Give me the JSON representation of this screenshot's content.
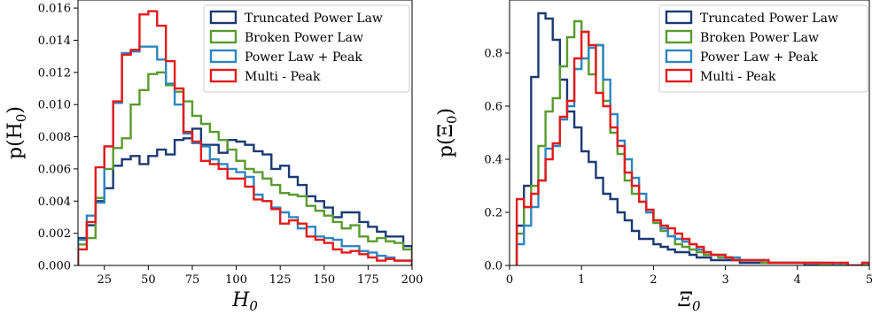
{
  "chart_data": [
    {
      "type": "histogram",
      "xlabel": "H",
      "xlabel_sub": "0",
      "ylabel": "p(H",
      "ylabel_sub": "0",
      "ylabel_close": ")",
      "xlim": [
        10,
        200
      ],
      "ylim": [
        0,
        0.0165
      ],
      "xticks": [
        25,
        50,
        75,
        100,
        125,
        150,
        175,
        200
      ],
      "yticks": [
        0.0,
        0.002,
        0.004,
        0.006,
        0.008,
        0.01,
        0.012,
        0.014,
        0.016
      ],
      "ytick_labels": [
        "0.000",
        "0.002",
        "0.004",
        "0.006",
        "0.008",
        "0.010",
        "0.012",
        "0.014",
        "0.016"
      ],
      "legend_position": "top-right",
      "bin_edges": [
        10,
        15,
        20,
        25,
        30,
        35,
        40,
        45,
        50,
        55,
        60,
        65,
        70,
        75,
        80,
        85,
        90,
        95,
        100,
        105,
        110,
        115,
        120,
        125,
        130,
        135,
        140,
        145,
        150,
        155,
        160,
        165,
        170,
        175,
        180,
        185,
        190,
        195,
        200
      ],
      "series": [
        {
          "name": "Truncated Power Law",
          "color": "#1b3a73",
          "values": [
            0.0017,
            0.0025,
            0.004,
            0.0048,
            0.0062,
            0.0066,
            0.0068,
            0.0063,
            0.0068,
            0.0072,
            0.0069,
            0.0078,
            0.0079,
            0.0085,
            0.0075,
            0.0075,
            0.007,
            0.0078,
            0.0077,
            0.0075,
            0.0071,
            0.0069,
            0.006,
            0.0062,
            0.0055,
            0.005,
            0.0043,
            0.004,
            0.0036,
            0.003,
            0.0033,
            0.0033,
            0.0027,
            0.0024,
            0.0021,
            0.0018,
            0.0018,
            0.0012
          ]
        },
        {
          "name": "Broken Power Law",
          "color": "#5a9b2e",
          "values": [
            0.0013,
            0.0017,
            0.0042,
            0.006,
            0.0073,
            0.0079,
            0.01,
            0.0109,
            0.0119,
            0.012,
            0.0112,
            0.0108,
            0.0102,
            0.0093,
            0.0088,
            0.0083,
            0.0078,
            0.0072,
            0.0065,
            0.006,
            0.0058,
            0.0054,
            0.005,
            0.0045,
            0.0044,
            0.0043,
            0.0037,
            0.0034,
            0.0031,
            0.0027,
            0.0023,
            0.0025,
            0.0018,
            0.0015,
            0.0017,
            0.0015,
            0.0014,
            0.001
          ]
        },
        {
          "name": "Power Law + Peak",
          "color": "#2e86c1",
          "values": [
            0.0016,
            0.0031,
            0.0039,
            0.0074,
            0.0101,
            0.0132,
            0.0133,
            0.0136,
            0.0136,
            0.0128,
            0.0113,
            0.01,
            0.0082,
            0.0076,
            0.0074,
            0.0066,
            0.0063,
            0.006,
            0.0058,
            0.0055,
            0.0044,
            0.004,
            0.0036,
            0.0033,
            0.003,
            0.0023,
            0.0024,
            0.0018,
            0.0017,
            0.0016,
            0.0012,
            0.0012,
            0.0009,
            0.0008,
            0.0006,
            0.0005,
            0.0003,
            0.0003
          ]
        },
        {
          "name": "Multi - Peak",
          "color": "#e41a1c",
          "values": [
            0.001,
            0.0027,
            0.0061,
            0.0074,
            0.0102,
            0.0131,
            0.0134,
            0.0156,
            0.0158,
            0.0149,
            0.0127,
            0.011,
            0.0083,
            0.0077,
            0.0065,
            0.0063,
            0.006,
            0.0054,
            0.0054,
            0.0049,
            0.0041,
            0.004,
            0.0035,
            0.0026,
            0.0028,
            0.0026,
            0.0018,
            0.0016,
            0.0014,
            0.001,
            0.0008,
            0.0009,
            0.0007,
            0.0005,
            0.0003,
            0.0004,
            0.0003,
            0.0003
          ]
        }
      ]
    },
    {
      "type": "histogram",
      "xlabel": "Ξ",
      "xlabel_sub": "0",
      "ylabel": "p(Ξ",
      "ylabel_sub": "0",
      "ylabel_close": ")",
      "xlim": [
        0,
        5
      ],
      "ylim": [
        0,
        1.0
      ],
      "xticks": [
        0,
        1,
        2,
        3,
        4,
        5
      ],
      "yticks": [
        0.0,
        0.2,
        0.4,
        0.6,
        0.8
      ],
      "ytick_labels": [
        "0.0",
        "0.2",
        "0.4",
        "0.6",
        "0.8"
      ],
      "legend_position": "top-right",
      "bin_edges": [
        0.1,
        0.2,
        0.3,
        0.4,
        0.5,
        0.6,
        0.7,
        0.8,
        0.9,
        1.0,
        1.1,
        1.2,
        1.3,
        1.4,
        1.5,
        1.6,
        1.7,
        1.8,
        1.9,
        2.0,
        2.1,
        2.2,
        2.3,
        2.4,
        2.5,
        2.6,
        2.7,
        2.8,
        2.9,
        3.0,
        3.1,
        3.2,
        3.3,
        3.4,
        3.5,
        3.6,
        3.7,
        3.8,
        3.9,
        4.0,
        4.1,
        4.2,
        4.3,
        4.4,
        4.5,
        4.6,
        4.7,
        4.8,
        4.9,
        5.0
      ],
      "series": [
        {
          "name": "Truncated Power Law",
          "color": "#1b3a73",
          "values": [
            0.15,
            0.3,
            0.71,
            0.95,
            0.93,
            0.85,
            0.7,
            0.58,
            0.52,
            0.43,
            0.39,
            0.33,
            0.27,
            0.25,
            0.2,
            0.17,
            0.13,
            0.1,
            0.1,
            0.08,
            0.07,
            0.06,
            0.05,
            0.05,
            0.04,
            0.03,
            0.03,
            0.02,
            0.02,
            0.02,
            0.02,
            0.01,
            0.01,
            0.01,
            0.01,
            0.01,
            0.01,
            0.01,
            0.01,
            0.01,
            0.0,
            0.0,
            0.0,
            0.0,
            0.0,
            0.0,
            0.0,
            0.0,
            0.0
          ]
        },
        {
          "name": "Broken Power Law",
          "color": "#5a9b2e",
          "values": [
            0.12,
            0.22,
            0.3,
            0.45,
            0.58,
            0.63,
            0.75,
            0.86,
            0.92,
            0.88,
            0.72,
            0.83,
            0.62,
            0.5,
            0.42,
            0.32,
            0.27,
            0.24,
            0.2,
            0.16,
            0.13,
            0.11,
            0.08,
            0.07,
            0.06,
            0.05,
            0.04,
            0.04,
            0.03,
            0.03,
            0.02,
            0.02,
            0.02,
            0.02,
            0.01,
            0.01,
            0.01,
            0.01,
            0.01,
            0.01,
            0.01,
            0.01,
            0.0,
            0.0,
            0.0,
            0.0,
            0.0,
            0.0,
            0.0
          ]
        },
        {
          "name": "Power Law + Peak",
          "color": "#2e86c1",
          "values": [
            0.08,
            0.15,
            0.22,
            0.32,
            0.44,
            0.45,
            0.55,
            0.6,
            0.74,
            0.78,
            0.82,
            0.83,
            0.7,
            0.57,
            0.47,
            0.4,
            0.33,
            0.27,
            0.2,
            0.17,
            0.14,
            0.11,
            0.1,
            0.09,
            0.08,
            0.06,
            0.05,
            0.04,
            0.04,
            0.03,
            0.03,
            0.02,
            0.02,
            0.02,
            0.02,
            0.01,
            0.01,
            0.01,
            0.01,
            0.01,
            0.01,
            0.01,
            0.01,
            0.01,
            0.0,
            0.01,
            0.0,
            0.0,
            0.01
          ]
        },
        {
          "name": "Multi - Peak",
          "color": "#e41a1c",
          "values": [
            0.25,
            0.22,
            0.27,
            0.32,
            0.4,
            0.46,
            0.56,
            0.62,
            0.78,
            0.88,
            0.83,
            0.65,
            0.6,
            0.52,
            0.45,
            0.35,
            0.3,
            0.24,
            0.21,
            0.17,
            0.15,
            0.14,
            0.12,
            0.1,
            0.08,
            0.07,
            0.05,
            0.04,
            0.04,
            0.03,
            0.02,
            0.02,
            0.02,
            0.02,
            0.02,
            0.01,
            0.01,
            0.01,
            0.01,
            0.01,
            0.01,
            0.01,
            0.01,
            0.01,
            0.01,
            0.01,
            0.0,
            0.0,
            0.01
          ]
        }
      ]
    }
  ]
}
